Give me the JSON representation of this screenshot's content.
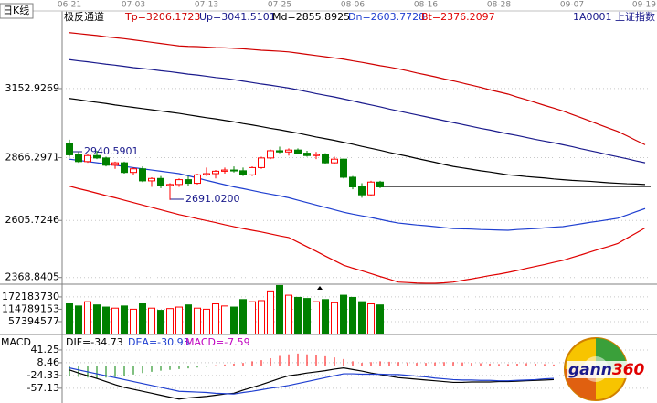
{
  "chart_data": {
    "type": "candlestick",
    "title": "日K线",
    "indicator": "极反通道",
    "symbol": "1A0001 上证指数",
    "categories": [
      "06-21",
      null,
      null,
      null,
      null,
      null,
      null,
      "07-03",
      null,
      null,
      null,
      null,
      null,
      null,
      null,
      "07-13",
      null,
      null,
      null,
      null,
      null,
      null,
      null,
      "07-25",
      null,
      null,
      null,
      null,
      null,
      null,
      null,
      "08-06",
      null,
      null,
      null,
      null,
      null,
      null,
      null,
      "08-16",
      null,
      null,
      null,
      null,
      null,
      null,
      null,
      "08-28",
      null,
      null,
      null,
      null,
      null,
      null,
      null,
      "09-07",
      null,
      null,
      null,
      null,
      null,
      null,
      null,
      "09-19"
    ],
    "ylim": [
      2345,
      3475
    ],
    "yticks": [
      2368.8405,
      2605.7246,
      2866.2971,
      3152.9269
    ],
    "grid": true,
    "candles": {
      "up_color": "#ff0000",
      "down_color": "#008000",
      "open": [
        2925,
        2878,
        2850,
        2875,
        2865,
        2835,
        2845,
        2805,
        2820,
        2770,
        2780,
        2750,
        2755,
        2775,
        2760,
        2795,
        2800,
        2810,
        2815,
        2812,
        2795,
        2825,
        2865,
        2895,
        2890,
        2898,
        2885,
        2875,
        2880,
        2845,
        2860,
        2785,
        2745,
        2712,
        2765
      ],
      "high": [
        2940.59,
        2890,
        2880,
        2895,
        2870,
        2850,
        2850,
        2825,
        2830,
        2785,
        2790,
        2760,
        2780,
        2790,
        2800,
        2825,
        2815,
        2825,
        2830,
        2825,
        2830,
        2870,
        2900,
        2912,
        2905,
        2905,
        2895,
        2890,
        2885,
        2870,
        2862,
        2790,
        2760,
        2770,
        2770
      ],
      "low": [
        2870,
        2845,
        2845,
        2860,
        2830,
        2820,
        2800,
        2795,
        2765,
        2745,
        2740,
        2691.02,
        2745,
        2750,
        2755,
        2790,
        2780,
        2800,
        2805,
        2790,
        2790,
        2820,
        2860,
        2885,
        2875,
        2880,
        2870,
        2860,
        2840,
        2840,
        2780,
        2735,
        2700,
        2705,
        2740
      ],
      "close": [
        2878,
        2850,
        2875,
        2865,
        2835,
        2845,
        2805,
        2820,
        2770,
        2780,
        2750,
        2755,
        2775,
        2760,
        2795,
        2800,
        2810,
        2815,
        2812,
        2795,
        2825,
        2865,
        2895,
        2890,
        2898,
        2885,
        2875,
        2880,
        2845,
        2860,
        2785,
        2745,
        2712,
        2765,
        2745
      ]
    },
    "series": [
      {
        "name": "Tp=3206.1723",
        "color": "#d00000",
        "values": [
          3385,
          3381,
          3377,
          3373,
          3368,
          3364,
          3360,
          3355,
          3350,
          3345,
          3340,
          3335,
          3330,
          3328,
          3327,
          3325,
          3323,
          3322,
          3320,
          3318,
          3315,
          3312,
          3310,
          3308,
          3305,
          3300,
          3295,
          3290,
          3285,
          3280,
          3275,
          3268,
          3262,
          3255,
          3248,
          3242,
          3235,
          3227,
          3218,
          3210,
          3202,
          3193,
          3185,
          3176,
          3167,
          3158,
          3148,
          3139,
          3130,
          3118,
          3107,
          3095,
          3083,
          3072,
          3060,
          3046,
          3032,
          3018,
          3003,
          2989,
          2975,
          2957,
          2938,
          2920
        ]
      },
      {
        "name": "Up=3041.5101",
        "color": "#1a1a8c",
        "values": [
          3273,
          3268,
          3264,
          3259,
          3254,
          3250,
          3245,
          3240,
          3236,
          3232,
          3227,
          3223,
          3218,
          3213,
          3209,
          3204,
          3199,
          3195,
          3190,
          3184,
          3178,
          3172,
          3167,
          3161,
          3155,
          3148,
          3140,
          3132,
          3125,
          3118,
          3110,
          3102,
          3093,
          3085,
          3077,
          3068,
          3060,
          3052,
          3044,
          3036,
          3028,
          3020,
          3012,
          3004,
          2996,
          2988,
          2981,
          2973,
          2965,
          2958,
          2950,
          2942,
          2935,
          2928,
          2920,
          2912,
          2903,
          2895,
          2887,
          2878,
          2870,
          2862,
          2853,
          2845
        ]
      },
      {
        "name": "Md=2855.8925",
        "color": "#000000",
        "values": [
          3112,
          3107,
          3101,
          3096,
          3091,
          3085,
          3080,
          3075,
          3070,
          3065,
          3060,
          3055,
          3050,
          3044,
          3038,
          3032,
          3027,
          3021,
          3015,
          3008,
          3002,
          2995,
          2988,
          2982,
          2975,
          2968,
          2960,
          2952,
          2945,
          2938,
          2930,
          2922,
          2913,
          2905,
          2897,
          2888,
          2880,
          2872,
          2863,
          2855,
          2847,
          2838,
          2830,
          2824,
          2818,
          2812,
          2807,
          2801,
          2795,
          2792,
          2788,
          2785,
          2782,
          2778,
          2775,
          2772,
          2770,
          2768,
          2765,
          2762,
          2760,
          2758,
          2757,
          2755
        ]
      },
      {
        "name": "Dn=2603.7728",
        "color": "#1f3fd0",
        "values": [
          2860,
          2855,
          2850,
          2845,
          2840,
          2835,
          2830,
          2825,
          2820,
          2815,
          2810,
          2805,
          2800,
          2791,
          2782,
          2772,
          2763,
          2754,
          2745,
          2738,
          2730,
          2722,
          2715,
          2708,
          2700,
          2690,
          2680,
          2670,
          2660,
          2650,
          2640,
          2632,
          2625,
          2618,
          2610,
          2602,
          2595,
          2591,
          2587,
          2584,
          2580,
          2576,
          2572,
          2571,
          2570,
          2568,
          2567,
          2566,
          2565,
          2568,
          2570,
          2572,
          2575,
          2578,
          2580,
          2586,
          2592,
          2598,
          2603,
          2609,
          2615,
          2628,
          2642,
          2655
        ]
      },
      {
        "name": "Bt=2376.2097",
        "color": "#e00000",
        "values": [
          2748,
          2738,
          2729,
          2719,
          2709,
          2700,
          2690,
          2680,
          2670,
          2660,
          2650,
          2640,
          2630,
          2622,
          2613,
          2605,
          2597,
          2588,
          2580,
          2572,
          2565,
          2558,
          2550,
          2542,
          2535,
          2516,
          2497,
          2478,
          2458,
          2439,
          2420,
          2408,
          2397,
          2385,
          2373,
          2362,
          2350,
          2348,
          2346,
          2345,
          2345,
          2347,
          2350,
          2357,
          2363,
          2370,
          2377,
          2383,
          2390,
          2398,
          2407,
          2415,
          2423,
          2432,
          2440,
          2452,
          2463,
          2475,
          2487,
          2498,
          2510,
          2532,
          2553,
          2575
        ]
      }
    ],
    "annotations": [
      {
        "text": "2940.5901"
      },
      {
        "text": "2691.0200"
      }
    ],
    "volume": {
      "ylim": [
        0,
        227000000
      ],
      "yticks": [
        57394577,
        114789153,
        172183730
      ],
      "values": [
        140000000,
        130000000,
        150000000,
        135000000,
        125000000,
        120000000,
        130000000,
        115000000,
        140000000,
        120000000,
        110000000,
        118000000,
        125000000,
        135000000,
        120000000,
        115000000,
        140000000,
        130000000,
        125000000,
        160000000,
        150000000,
        155000000,
        200000000,
        225000000,
        180000000,
        170000000,
        165000000,
        150000000,
        160000000,
        145000000,
        180000000,
        170000000,
        150000000,
        140000000,
        135000000
      ]
    },
    "macd": {
      "title": "MACD",
      "ylim": [
        -95,
        81
      ],
      "yticks": [
        -57.13,
        -24.33,
        8.46,
        41.25
      ],
      "histogram": {
        "name": "MACD=-7.59",
        "color": "#c000c0",
        "up_color": "#ff0000",
        "down_color": "#008000",
        "values": [
          -25,
          -28,
          -30,
          -32,
          -30,
          -28,
          -25,
          -22,
          -18,
          -15,
          -12,
          -10,
          -8,
          -6,
          -4,
          -2,
          2,
          4,
          6,
          8,
          12,
          15,
          20,
          26,
          30,
          32,
          30,
          28,
          25,
          22,
          18,
          12,
          8,
          10,
          12,
          11,
          10,
          9,
          8,
          8,
          9,
          10,
          10,
          9,
          8,
          7,
          6,
          5,
          5,
          6,
          7,
          6,
          5,
          4
        ]
      },
      "dif": {
        "name": "DIF=-34.73",
        "color": "#000000",
        "values": [
          -10,
          -18,
          -25,
          -32,
          -40,
          -48,
          -55,
          -60,
          -65,
          -70,
          -75,
          -80,
          -85,
          -82,
          -80,
          -78,
          -75,
          -72,
          -70,
          -62,
          -55,
          -48,
          -40,
          -32,
          -25,
          -22,
          -18,
          -15,
          -12,
          -8,
          -5,
          -9,
          -13,
          -18,
          -22,
          -26,
          -30,
          -32,
          -34,
          -36,
          -38,
          -40,
          -42,
          -42,
          -41,
          -41,
          -41,
          -40,
          -40,
          -39,
          -38,
          -37,
          -36,
          -35
        ]
      },
      "dea": {
        "name": "DEA=-30.93",
        "color": "#1f3fd0",
        "values": [
          -5,
          -10,
          -15,
          -20,
          -25,
          -30,
          -35,
          -40,
          -45,
          -50,
          -55,
          -60,
          -65,
          -66,
          -67,
          -68,
          -70,
          -71,
          -72,
          -68,
          -65,
          -61,
          -57,
          -54,
          -50,
          -45,
          -40,
          -35,
          -30,
          -25,
          -20,
          -20,
          -21,
          -21,
          -21,
          -22,
          -22,
          -24,
          -26,
          -28,
          -31,
          -33,
          -35,
          -36,
          -36,
          -37,
          -37,
          -38,
          -38,
          -37,
          -36,
          -35,
          -33,
          -32
        ]
      }
    },
    "logo": {
      "name": "gann",
      "number": "360"
    }
  }
}
